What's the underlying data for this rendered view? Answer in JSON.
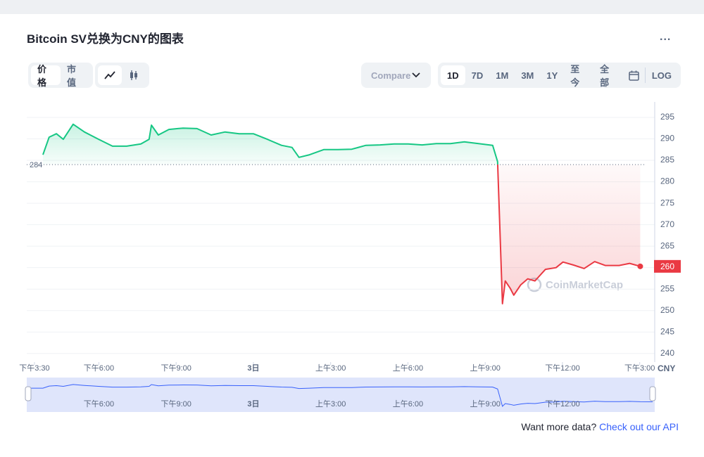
{
  "header": {
    "menu": "..."
  },
  "controls": {
    "views": [
      "价格",
      "市值"
    ],
    "compare": "Compare",
    "ranges": [
      "1D",
      "7D",
      "1M",
      "3M",
      "1Y",
      "至今",
      "全部"
    ],
    "log": "LOG"
  },
  "footer": {
    "text": "Want more data?",
    "link": "Check out our API"
  },
  "chart_data": {
    "type": "line",
    "title": "Bitcoin SV兑换为CNY的图表",
    "watermark": "CoinMarketCap",
    "y_axis_label": "CNY",
    "x": [
      0.33,
      0.57,
      0.85,
      1.12,
      1.5,
      1.94,
      2.49,
      3.03,
      3.58,
      4.13,
      4.45,
      4.54,
      4.81,
      5.22,
      5.77,
      6.31,
      6.86,
      7.4,
      7.95,
      8.5,
      9.04,
      9.59,
      10.0,
      10.27,
      10.68,
      11.23,
      11.78,
      12.32,
      12.87,
      13.42,
      13.96,
      14.51,
      15.05,
      15.6,
      16.15,
      16.69,
      17.24,
      17.79,
      17.98,
      18.17,
      18.28,
      18.47,
      18.61,
      18.88,
      19.15,
      19.43,
      19.84,
      20.25,
      20.52,
      20.93,
      21.34,
      21.75,
      22.16,
      22.7,
      23.11,
      23.52
    ],
    "values": [
      286.3,
      290.4,
      291.2,
      289.9,
      293.4,
      291.6,
      289.9,
      288.3,
      288.3,
      288.8,
      289.9,
      293.2,
      290.9,
      292.2,
      292.5,
      292.4,
      290.9,
      291.6,
      291.2,
      291.2,
      289.9,
      288.5,
      288.0,
      285.7,
      286.3,
      287.5,
      287.5,
      287.6,
      288.5,
      288.6,
      288.8,
      288.8,
      288.6,
      288.9,
      288.9,
      289.3,
      288.9,
      288.5,
      284.7,
      251.6,
      256.9,
      255.2,
      253.6,
      256.0,
      257.4,
      256.9,
      259.6,
      260.0,
      261.3,
      260.6,
      259.8,
      261.4,
      260.5,
      260.5,
      261.0,
      260.3
    ],
    "reference": 284,
    "current_price": {
      "value": 260.3,
      "label": "260"
    },
    "color_up": "#16c784",
    "color_down": "#ea3943",
    "navigator_color": "#3861fb",
    "xlim": [
      -0.3,
      24
    ],
    "xticks": [
      {
        "value": 0,
        "label": "下午3:30"
      },
      {
        "value": 2.5,
        "label": "下午6:00"
      },
      {
        "value": 5.5,
        "label": "下午9:00"
      },
      {
        "value": 8.5,
        "label": "3日"
      },
      {
        "value": 11.5,
        "label": "上午3:00"
      },
      {
        "value": 14.5,
        "label": "上午6:00"
      },
      {
        "value": 17.5,
        "label": "上午9:00"
      },
      {
        "value": 20.5,
        "label": "下午12:00"
      },
      {
        "value": 23.5,
        "label": "下午3:00"
      }
    ],
    "ylim": [
      238,
      298.6
    ],
    "yticks": [
      240,
      245,
      250,
      255,
      260,
      265,
      270,
      275,
      280,
      285,
      290,
      295
    ],
    "grid": true
  }
}
